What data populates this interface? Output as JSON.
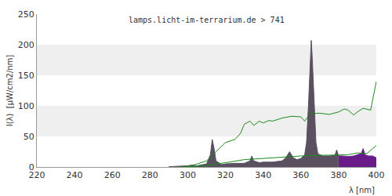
{
  "chart_data": {
    "type": "area",
    "title": "lamps.licht-im-terrarium.de > 741",
    "x_label": "λ [nm]",
    "y_label": "I(λ)  [µW/cm2/nm]",
    "xlim": [
      220,
      400
    ],
    "xticks": [
      220,
      240,
      260,
      280,
      300,
      320,
      340,
      360,
      380,
      400
    ],
    "ylim": [
      0,
      250
    ],
    "yticks": [
      0,
      50,
      100,
      150,
      200,
      250
    ],
    "grid": true,
    "series": [
      {
        "type": "area",
        "color": "#5a5060",
        "x": [
          290,
          295,
          300,
          302,
          305,
          308,
          310,
          312,
          313,
          314,
          315,
          318,
          320,
          325,
          330,
          333,
          334,
          335,
          338,
          340,
          345,
          350,
          352,
          354,
          356,
          358,
          360,
          362,
          363,
          364,
          365,
          365.5,
          366,
          367,
          368,
          369,
          370,
          372,
          375,
          378,
          379,
          380
        ],
        "values": [
          0.5,
          1,
          2,
          3,
          2,
          4,
          5,
          20,
          45,
          30,
          10,
          4,
          5,
          6,
          6,
          10,
          18,
          10,
          7,
          8,
          8,
          10,
          15,
          25,
          15,
          12,
          14,
          20,
          40,
          100,
          160,
          207,
          180,
          100,
          40,
          22,
          20,
          18,
          18,
          19,
          28,
          18
        ]
      },
      {
        "type": "area",
        "color": "#6a1b8a",
        "x": [
          380,
          382,
          385,
          388,
          390,
          392,
          393,
          394,
          396,
          398,
          400
        ],
        "values": [
          18,
          18,
          17,
          18,
          20,
          22,
          30,
          20,
          18,
          18,
          15
        ]
      },
      {
        "type": "line",
        "color": "#1a8a1a",
        "x": [
          295,
          300,
          305,
          310,
          315,
          320,
          325,
          328,
          330,
          333,
          335,
          338,
          340,
          343,
          345,
          350,
          355,
          360,
          362,
          365,
          370,
          375,
          380,
          383,
          385,
          388,
          390,
          393,
          397,
          400
        ],
        "values": [
          0,
          1,
          5,
          10,
          25,
          40,
          45,
          55,
          70,
          75,
          68,
          75,
          72,
          76,
          75,
          80,
          83,
          82,
          75,
          87,
          88,
          86,
          90,
          95,
          93,
          85,
          90,
          96,
          93,
          140
        ]
      },
      {
        "type": "line",
        "color": "#1a8a1a",
        "x": [
          300,
          310,
          315,
          320,
          330,
          340,
          350,
          360,
          370,
          380,
          385,
          390,
          395,
          398,
          400
        ],
        "values": [
          0,
          2,
          5,
          7,
          12,
          14,
          16,
          18,
          19,
          20,
          20,
          23,
          22,
          30,
          35
        ]
      }
    ]
  }
}
